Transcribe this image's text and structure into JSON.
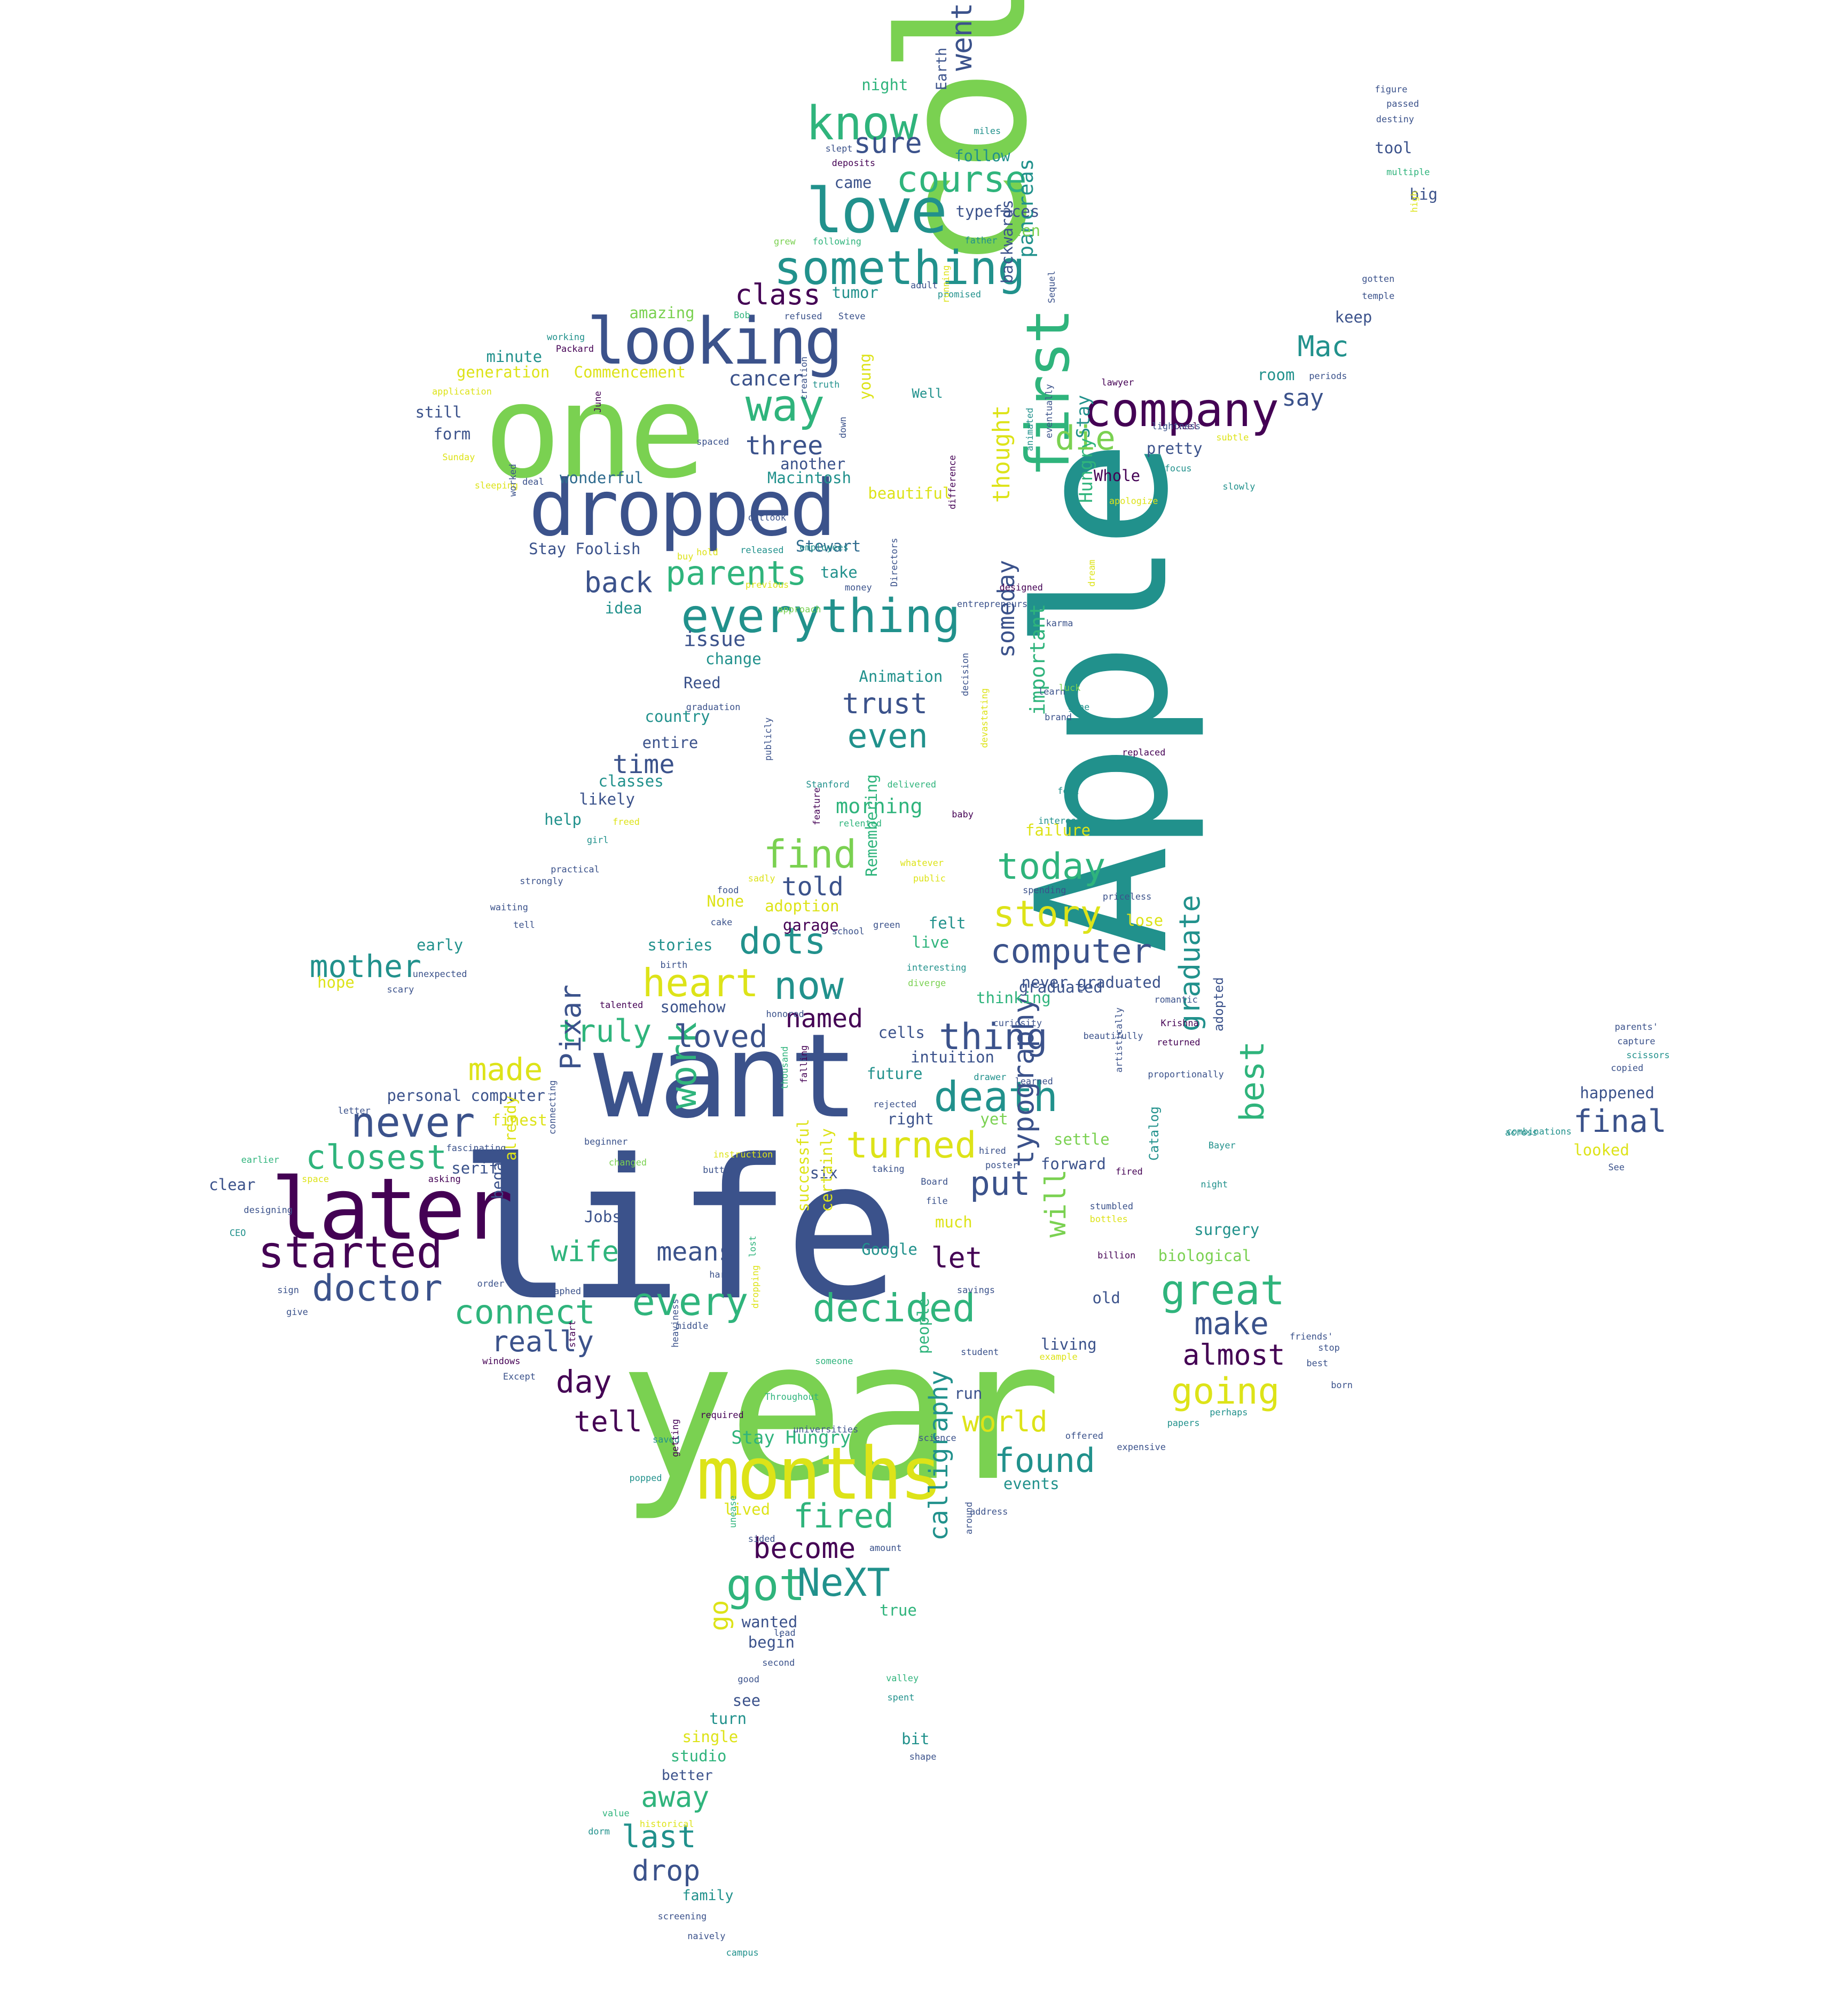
{
  "palette": {
    "dark_purple": "#440154",
    "indigo": "#3b528b",
    "blue": "#2f6b8e",
    "teal": "#21918c",
    "green": "#2fb47c",
    "lime": "#7ad151",
    "yellow": "#dde318"
  },
  "words": [
    {
      "text": "life"
    },
    {
      "text": "year"
    },
    {
      "text": "Apple"
    },
    {
      "text": "college"
    },
    {
      "text": "want"
    },
    {
      "text": "one"
    },
    {
      "text": "dropped"
    },
    {
      "text": "later"
    },
    {
      "text": "months"
    },
    {
      "text": "looking"
    },
    {
      "text": "love"
    },
    {
      "text": "something"
    },
    {
      "text": "first"
    },
    {
      "text": "everything"
    },
    {
      "text": "company"
    },
    {
      "text": "know"
    },
    {
      "text": "course"
    },
    {
      "text": "started"
    },
    {
      "text": "never"
    },
    {
      "text": "doctor"
    },
    {
      "text": "closest"
    },
    {
      "text": "mother"
    },
    {
      "text": "made"
    },
    {
      "text": "truly"
    },
    {
      "text": "heart"
    },
    {
      "text": "dots"
    },
    {
      "text": "now"
    },
    {
      "text": "find"
    },
    {
      "text": "today"
    },
    {
      "text": "story"
    },
    {
      "text": "computer"
    },
    {
      "text": "thing"
    },
    {
      "text": "death"
    },
    {
      "text": "turned"
    },
    {
      "text": "put"
    },
    {
      "text": "great"
    },
    {
      "text": "make"
    },
    {
      "text": "almost"
    },
    {
      "text": "going"
    },
    {
      "text": "best"
    },
    {
      "text": "graduate"
    },
    {
      "text": "decided"
    },
    {
      "text": "every"
    },
    {
      "text": "connect"
    },
    {
      "text": "really"
    },
    {
      "text": "day"
    },
    {
      "text": "tell"
    },
    {
      "text": "wife"
    },
    {
      "text": "means"
    },
    {
      "text": "work"
    },
    {
      "text": "let"
    },
    {
      "text": "typography"
    },
    {
      "text": "will"
    },
    {
      "text": "found"
    },
    {
      "text": "world"
    },
    {
      "text": "fired"
    },
    {
      "text": "become"
    },
    {
      "text": "got"
    },
    {
      "text": "NeXT"
    },
    {
      "text": "calligraphy"
    },
    {
      "text": "go"
    },
    {
      "text": "away"
    },
    {
      "text": "last"
    },
    {
      "text": "drop"
    },
    {
      "text": "parents"
    },
    {
      "text": "back"
    },
    {
      "text": "class"
    },
    {
      "text": "three"
    },
    {
      "text": "way"
    },
    {
      "text": "die"
    },
    {
      "text": "Mac"
    },
    {
      "text": "say"
    },
    {
      "text": "sure"
    },
    {
      "text": "went"
    },
    {
      "text": "thought"
    },
    {
      "text": "someday"
    },
    {
      "text": "important"
    },
    {
      "text": "pancreas"
    },
    {
      "text": "Hungry"
    },
    {
      "text": "Stay"
    },
    {
      "text": "trust"
    },
    {
      "text": "even"
    },
    {
      "text": "time"
    },
    {
      "text": "told"
    },
    {
      "text": "loved"
    },
    {
      "text": "named"
    },
    {
      "text": "morning"
    },
    {
      "text": "issue"
    },
    {
      "text": "cancer"
    },
    {
      "text": "Pixar"
    },
    {
      "text": "Stay Hungry"
    },
    {
      "text": "final"
    },
    {
      "text": "happened"
    },
    {
      "text": "looked"
    },
    {
      "text": "Stay Foolish"
    },
    {
      "text": "Macintosh"
    },
    {
      "text": "wonderful"
    },
    {
      "text": "beautiful"
    },
    {
      "text": "Animation"
    },
    {
      "text": "Stewart"
    },
    {
      "text": "personal computer"
    },
    {
      "text": "never graduated"
    },
    {
      "text": "intuition"
    },
    {
      "text": "future"
    },
    {
      "text": "adopted"
    },
    {
      "text": "surgery"
    },
    {
      "text": "biological"
    },
    {
      "text": "settle"
    },
    {
      "text": "forward"
    },
    {
      "text": "Catalog"
    },
    {
      "text": "living"
    },
    {
      "text": "studio"
    },
    {
      "text": "single"
    },
    {
      "text": "better"
    },
    {
      "text": "family"
    },
    {
      "text": "see"
    },
    {
      "text": "turn"
    },
    {
      "text": "begin"
    },
    {
      "text": "wanted"
    },
    {
      "text": "true"
    },
    {
      "text": "bit"
    },
    {
      "text": "lived"
    },
    {
      "text": "events"
    },
    {
      "text": "Google"
    },
    {
      "text": "Jobs"
    },
    {
      "text": "serif"
    },
    {
      "text": "finest"
    },
    {
      "text": "clear"
    },
    {
      "text": "hope"
    },
    {
      "text": "early"
    },
    {
      "text": "stories"
    },
    {
      "text": "somehow"
    },
    {
      "text": "adoption"
    },
    {
      "text": "None"
    },
    {
      "text": "garage"
    },
    {
      "text": "felt"
    },
    {
      "text": "live"
    },
    {
      "text": "cells"
    },
    {
      "text": "thinking"
    },
    {
      "text": "right"
    },
    {
      "text": "yet"
    },
    {
      "text": "lose"
    },
    {
      "text": "failure"
    },
    {
      "text": "help"
    },
    {
      "text": "likely"
    },
    {
      "text": "classes"
    },
    {
      "text": "entire"
    },
    {
      "text": "country"
    },
    {
      "text": "Reed"
    },
    {
      "text": "change"
    },
    {
      "text": "idea"
    },
    {
      "text": "take"
    },
    {
      "text": "another"
    },
    {
      "text": "young"
    },
    {
      "text": "minute"
    },
    {
      "text": "generation"
    },
    {
      "text": "Commencement"
    },
    {
      "text": "still"
    },
    {
      "text": "form"
    },
    {
      "text": "amazing"
    },
    {
      "text": "tumor"
    },
    {
      "text": "night"
    },
    {
      "text": "follow"
    },
    {
      "text": "came"
    },
    {
      "text": "typefaces"
    },
    {
      "text": "ten"
    },
    {
      "text": "Earth"
    },
    {
      "text": "backwards"
    },
    {
      "text": "pretty"
    },
    {
      "text": "Whole"
    },
    {
      "text": "room"
    },
    {
      "text": "keep"
    },
    {
      "text": "tool"
    },
    {
      "text": "big"
    },
    {
      "text": "old"
    },
    {
      "text": "much"
    },
    {
      "text": "six"
    },
    {
      "text": "certainly"
    },
    {
      "text": "successful"
    },
    {
      "text": "already"
    },
    {
      "text": "began"
    },
    {
      "text": "people"
    },
    {
      "text": "run"
    },
    {
      "text": "Remembering"
    },
    {
      "text": "Well"
    },
    {
      "text": "graduated"
    },
    {
      "text": "figure"
    },
    {
      "text": "passed"
    },
    {
      "text": "destiny"
    },
    {
      "text": "multiple"
    },
    {
      "text": "gotten"
    },
    {
      "text": "temple"
    },
    {
      "text": "lawyer"
    },
    {
      "text": "Excel"
    },
    {
      "text": "subtle"
    },
    {
      "text": "application"
    },
    {
      "text": "sleeping"
    },
    {
      "text": "deal"
    },
    {
      "text": "Sunday"
    },
    {
      "text": "working"
    },
    {
      "text": "Packard"
    },
    {
      "text": "deposits"
    },
    {
      "text": "slept"
    },
    {
      "text": "miles"
    },
    {
      "text": "grew"
    },
    {
      "text": "following"
    },
    {
      "text": "adult"
    },
    {
      "text": "promised"
    },
    {
      "text": "father"
    },
    {
      "text": "Bob"
    },
    {
      "text": "refused"
    },
    {
      "text": "Steve"
    },
    {
      "text": "spaced"
    },
    {
      "text": "released"
    },
    {
      "text": "employees"
    },
    {
      "text": "money"
    },
    {
      "text": "learn"
    },
    {
      "text": "gone"
    },
    {
      "text": "Stanford"
    },
    {
      "text": "delivered"
    },
    {
      "text": "relented"
    },
    {
      "text": "baby"
    },
    {
      "text": "interest"
    },
    {
      "text": "previous"
    },
    {
      "text": "whatever"
    },
    {
      "text": "public"
    },
    {
      "text": "spending"
    },
    {
      "text": "priceless"
    },
    {
      "text": "food"
    },
    {
      "text": "cake"
    },
    {
      "text": "school"
    },
    {
      "text": "green"
    },
    {
      "text": "interesting"
    },
    {
      "text": "diverge"
    },
    {
      "text": "birth"
    },
    {
      "text": "unexpected"
    },
    {
      "text": "scary"
    },
    {
      "text": "talented"
    },
    {
      "text": "honored"
    },
    {
      "text": "romantic"
    },
    {
      "text": "Krishna"
    },
    {
      "text": "returned"
    },
    {
      "text": "drawer"
    },
    {
      "text": "rejected"
    },
    {
      "text": "poster"
    },
    {
      "text": "learned"
    },
    {
      "text": "stumbled"
    },
    {
      "text": "bottles"
    },
    {
      "text": "billion"
    },
    {
      "text": "Board"
    },
    {
      "text": "file"
    },
    {
      "text": "savings"
    },
    {
      "text": "student"
    },
    {
      "text": "example"
    },
    {
      "text": "offered"
    },
    {
      "text": "expensive"
    },
    {
      "text": "perhaps"
    },
    {
      "text": "papers"
    },
    {
      "text": "science"
    },
    {
      "text": "address"
    },
    {
      "text": "amount"
    },
    {
      "text": "good"
    },
    {
      "text": "second"
    },
    {
      "text": "valley"
    },
    {
      "text": "spent"
    },
    {
      "text": "shape"
    },
    {
      "text": "value"
    },
    {
      "text": "historical"
    },
    {
      "text": "dorm"
    },
    {
      "text": "screening"
    },
    {
      "text": "naively"
    },
    {
      "text": "campus"
    },
    {
      "text": "popped"
    },
    {
      "text": "saved"
    },
    {
      "text": "required"
    },
    {
      "text": "Throughout"
    },
    {
      "text": "someone"
    },
    {
      "text": "middle"
    },
    {
      "text": "hard"
    },
    {
      "text": "Except"
    },
    {
      "text": "windows"
    },
    {
      "text": "order"
    },
    {
      "text": "calligraphed"
    },
    {
      "text": "give"
    },
    {
      "text": "sign"
    },
    {
      "text": "CEO"
    },
    {
      "text": "designing"
    },
    {
      "text": "earlier"
    },
    {
      "text": "letter"
    },
    {
      "text": "fascinating"
    },
    {
      "text": "asking"
    },
    {
      "text": "changed"
    },
    {
      "text": "button"
    },
    {
      "text": "instruction"
    },
    {
      "text": "space"
    },
    {
      "text": "beginner"
    },
    {
      "text": "connecting"
    },
    {
      "text": "taking"
    },
    {
      "text": "hired"
    },
    {
      "text": "fired"
    },
    {
      "text": "across"
    },
    {
      "text": "parents'"
    },
    {
      "text": "capture"
    },
    {
      "text": "scissors"
    },
    {
      "text": "copied"
    },
    {
      "text": "See"
    },
    {
      "text": "combinations"
    },
    {
      "text": "high"
    },
    {
      "text": "periods"
    },
    {
      "text": "stop"
    },
    {
      "text": "best"
    },
    {
      "text": "born"
    },
    {
      "text": "friends'"
    },
    {
      "text": "karma"
    },
    {
      "text": "entrepreneurs"
    },
    {
      "text": "approach"
    },
    {
      "text": "designed"
    },
    {
      "text": "difference"
    },
    {
      "text": "animated"
    },
    {
      "text": "eventually"
    },
    {
      "text": "Sequel"
    },
    {
      "text": "dream"
    },
    {
      "text": "slowly"
    },
    {
      "text": "focus"
    },
    {
      "text": "lightness"
    },
    {
      "text": "apologize"
    },
    {
      "text": "creation"
    },
    {
      "text": "June"
    },
    {
      "text": "running"
    },
    {
      "text": "down"
    },
    {
      "text": "truth"
    },
    {
      "text": "Directors"
    },
    {
      "text": "worked"
    },
    {
      "text": "graduation"
    },
    {
      "text": "publicly"
    },
    {
      "text": "strongly"
    },
    {
      "text": "waiting"
    },
    {
      "text": "tell"
    },
    {
      "text": "practical"
    },
    {
      "text": "freed"
    },
    {
      "text": "girl"
    },
    {
      "text": "feature"
    },
    {
      "text": "sadly"
    },
    {
      "text": "buy"
    },
    {
      "text": "hold"
    },
    {
      "text": "outlook"
    },
    {
      "text": "curiosity"
    },
    {
      "text": "beautifully"
    },
    {
      "text": "artistically"
    },
    {
      "text": "proportionally"
    },
    {
      "text": "falling"
    },
    {
      "text": "thousand"
    },
    {
      "text": "devastating"
    },
    {
      "text": "decision"
    },
    {
      "text": "dropping"
    },
    {
      "text": "heaviness"
    },
    {
      "text": "start"
    },
    {
      "text": "lost"
    },
    {
      "text": "getting"
    },
    {
      "text": "universities"
    },
    {
      "text": "sided"
    },
    {
      "text": "unease"
    },
    {
      "text": "around"
    },
    {
      "text": "lead"
    },
    {
      "text": "luck"
    },
    {
      "text": "brand"
    },
    {
      "text": "replaced"
    },
    {
      "text": "feel"
    },
    {
      "text": "night"
    },
    {
      "text": "Bayer"
    }
  ]
}
